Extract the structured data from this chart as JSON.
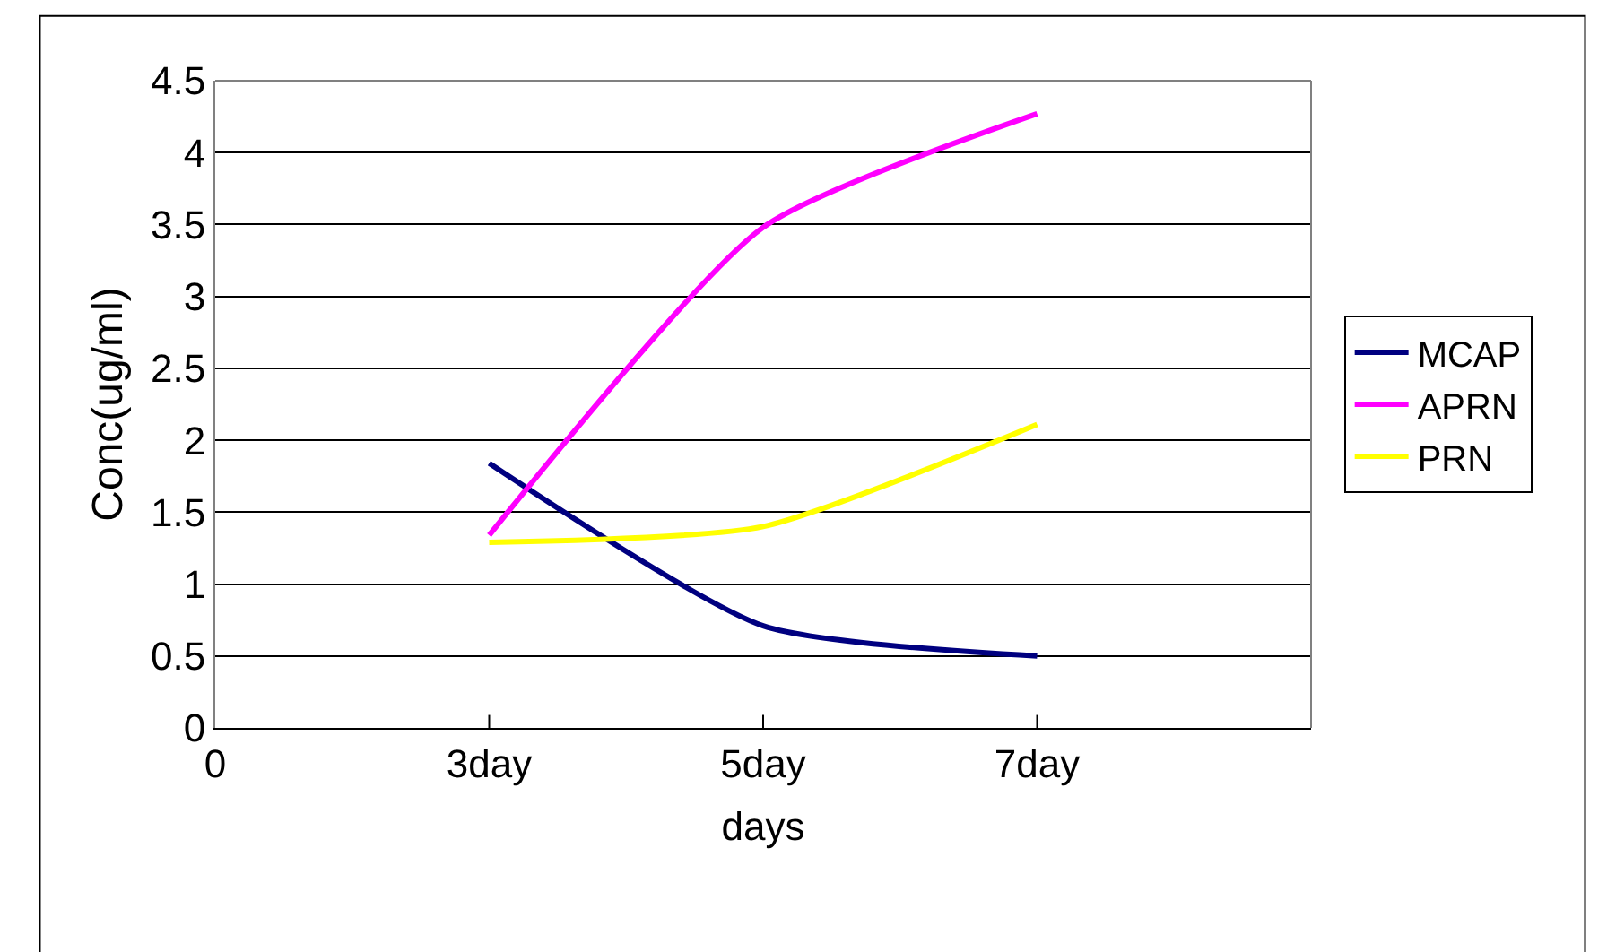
{
  "chart_data": {
    "type": "line",
    "xlabel": "days",
    "ylabel": "Conc(ug/ml)",
    "categories": [
      "0",
      "3day",
      "5day",
      "7day",
      null
    ],
    "series": [
      {
        "name": "MCAP",
        "color": "#000080",
        "values": [
          null,
          1.84,
          0.71,
          0.5,
          null
        ]
      },
      {
        "name": "APRN",
        "color": "#ff00ff",
        "values": [
          null,
          1.34,
          3.48,
          4.27,
          null
        ]
      },
      {
        "name": "PRN",
        "color": "#ffff00",
        "values": [
          null,
          1.29,
          1.4,
          2.11,
          null
        ]
      }
    ],
    "ylim": [
      0,
      4.5
    ],
    "yticks": [
      0,
      0.5,
      1,
      1.5,
      2,
      2.5,
      3,
      3.5,
      4,
      4.5
    ],
    "grid": "y",
    "legend": "right",
    "marker": "none",
    "line_style": "solid"
  }
}
